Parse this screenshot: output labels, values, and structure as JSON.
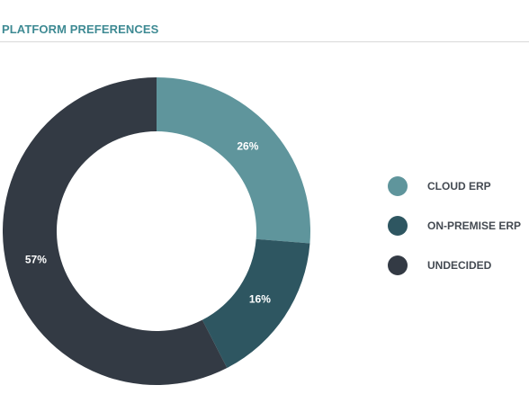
{
  "chart_data": {
    "type": "pie",
    "title": "PLATFORM PREFERENCES",
    "categories": [
      "CLOUD ERP",
      "ON-PREMISE ERP",
      "UNDECIDED"
    ],
    "values": [
      26,
      16,
      57
    ],
    "value_labels": [
      "26%",
      "16%",
      "57%"
    ],
    "colors": [
      "#5f959c",
      "#2e5661",
      "#333a44"
    ],
    "legend_position": "right",
    "donut": true
  }
}
